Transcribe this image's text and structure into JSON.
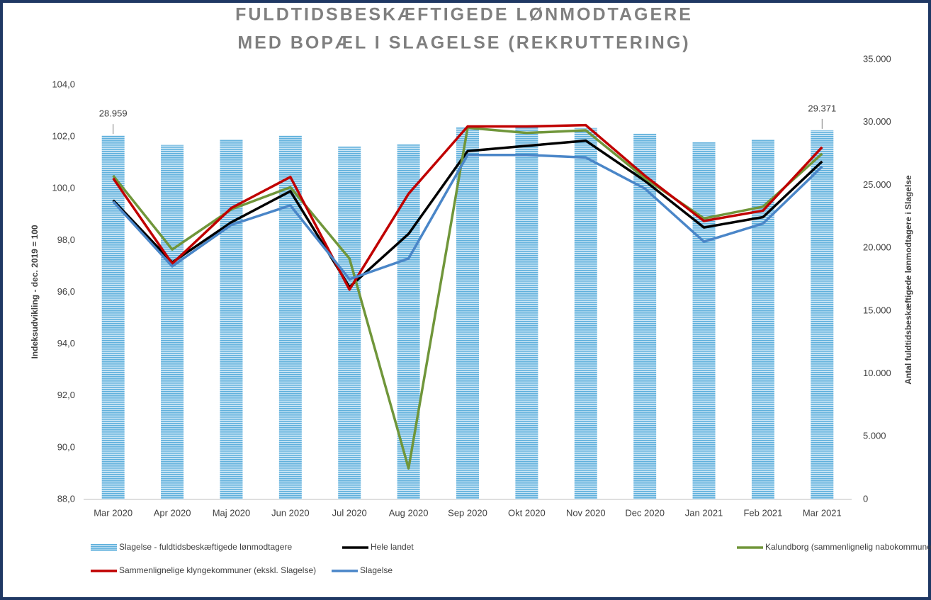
{
  "chart_data": {
    "type": "bar_line",
    "title": [
      "FULDTIDSBESKÆFTIGEDE LØNMODTAGERE",
      "MED BOPÆL I SLAGELSE (REKRUTTERING)"
    ],
    "y_label": "Indeksudvikling - dec. 2019 = 100",
    "y2_label": "Antal fuldtidsbeskæftigede lønmodtagere  i Slagelse",
    "categories": [
      "Mar 2020",
      "Apr 2020",
      "Maj 2020",
      "Jun 2020",
      "Jul 2020",
      "Aug 2020",
      "Sep 2020",
      "Okt 2020",
      "Nov 2020",
      "Dec 2020",
      "Jan 2021",
      "Feb 2021",
      "Mar 2021"
    ],
    "ylim": [
      88,
      104
    ],
    "yticks": [
      {
        "value": 88,
        "label": "88,0"
      },
      {
        "value": 90,
        "label": "90,0"
      },
      {
        "value": 92,
        "label": "92,0"
      },
      {
        "value": 94,
        "label": "94,0"
      },
      {
        "value": 96,
        "label": "96,0"
      },
      {
        "value": 98,
        "label": "98,0"
      },
      {
        "value": 100,
        "label": "100,0"
      },
      {
        "value": 102,
        "label": "102,0"
      },
      {
        "value": 104,
        "label": "104,0"
      }
    ],
    "y2lim": [
      0,
      35000
    ],
    "y2ticks": [
      0,
      {
        "value": 5000,
        "label": "5.000"
      },
      {
        "value": 10000,
        "label": "10.000"
      },
      {
        "value": 15000,
        "label": "15.000"
      },
      {
        "value": 20000,
        "label": "20.000"
      },
      {
        "value": 25000,
        "label": "25.000"
      },
      {
        "value": 30000,
        "label": "30.000"
      },
      {
        "value": 35000,
        "label": "35.000"
      }
    ],
    "grid": false,
    "series": [
      {
        "name": "Slagelse - fuldtidsbeskæftigede lønmodtagere",
        "kind": "bar",
        "axis": "y2",
        "color": "#5fb0dc",
        "values": [
          28959,
          28200,
          28650,
          28950,
          28080,
          28250,
          29600,
          29600,
          29550,
          29100,
          28420,
          28650,
          29371
        ],
        "value_labels": [
          "28.959",
          null,
          null,
          null,
          null,
          null,
          null,
          null,
          null,
          null,
          null,
          null,
          "29.371"
        ]
      },
      {
        "name": "Hele landet",
        "kind": "line",
        "color": "#000000",
        "values": [
          99.55,
          97.15,
          98.7,
          99.9,
          96.2,
          98.25,
          101.45,
          101.65,
          101.85,
          100.3,
          98.5,
          98.9,
          101.05
        ]
      },
      {
        "name": "Kalundborg (sammenlignelig nabokommune)",
        "kind": "line",
        "color": "#70963a",
        "values": [
          100.5,
          97.65,
          99.2,
          100.05,
          97.3,
          89.2,
          102.35,
          102.15,
          102.25,
          100.4,
          98.85,
          99.3,
          101.35
        ]
      },
      {
        "name": "Sammenlignelige klyngekommuner (ekskl. Slagelse)",
        "kind": "line",
        "color": "#c00000",
        "values": [
          100.4,
          97.1,
          99.25,
          100.45,
          96.1,
          99.8,
          102.4,
          102.4,
          102.45,
          100.5,
          98.75,
          99.15,
          101.6
        ]
      },
      {
        "name": "Slagelse",
        "kind": "line",
        "color": "#4a86c8",
        "values": [
          99.5,
          97.0,
          98.6,
          99.35,
          96.5,
          97.3,
          101.3,
          101.3,
          101.2,
          100.0,
          97.95,
          98.65,
          100.85
        ]
      }
    ]
  }
}
